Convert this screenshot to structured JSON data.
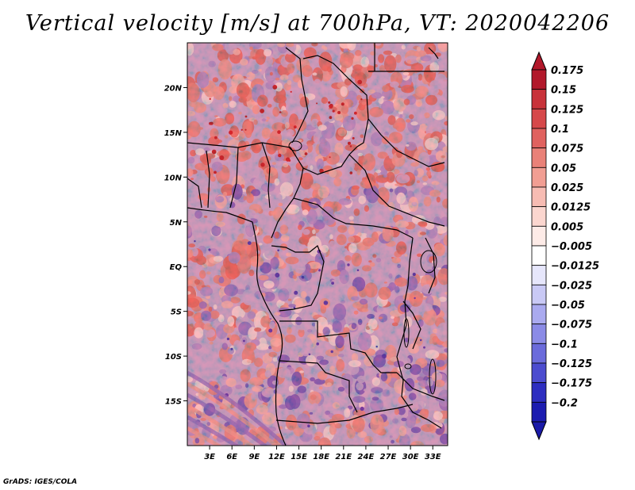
{
  "title": "Vertical velocity [m/s] at 700hPa, VT: 2020042206",
  "credit": "GrADS: IGES/COLA",
  "map": {
    "variable": "Vertical velocity",
    "units": "m/s",
    "level": "700hPa",
    "valid_time": "2020042206",
    "lat_range": [
      -20,
      25
    ],
    "lon_range": [
      0,
      35
    ],
    "lat_ticks": [
      {
        "value": 20,
        "label": "20N"
      },
      {
        "value": 15,
        "label": "15N"
      },
      {
        "value": 10,
        "label": "10N"
      },
      {
        "value": 5,
        "label": "5N"
      },
      {
        "value": 0,
        "label": "EQ"
      },
      {
        "value": -5,
        "label": "5S"
      },
      {
        "value": -10,
        "label": "10S"
      },
      {
        "value": -15,
        "label": "15S"
      }
    ],
    "lon_ticks": [
      {
        "value": 3,
        "label": "3E"
      },
      {
        "value": 6,
        "label": "6E"
      },
      {
        "value": 9,
        "label": "9E"
      },
      {
        "value": 12,
        "label": "12E"
      },
      {
        "value": 15,
        "label": "15E"
      },
      {
        "value": 18,
        "label": "18E"
      },
      {
        "value": 21,
        "label": "21E"
      },
      {
        "value": 24,
        "label": "24E"
      },
      {
        "value": 27,
        "label": "27E"
      },
      {
        "value": 30,
        "label": "30E"
      },
      {
        "value": 33,
        "label": "33E"
      }
    ]
  },
  "colorbar": {
    "levels": [
      {
        "label": "0.175",
        "color": "#b2182b"
      },
      {
        "label": "0.15",
        "color": "#c8323a"
      },
      {
        "label": "0.125",
        "color": "#d6484a"
      },
      {
        "label": "0.1",
        "color": "#e0625f"
      },
      {
        "label": "0.075",
        "color": "#e98178"
      },
      {
        "label": "0.05",
        "color": "#f19e93"
      },
      {
        "label": "0.025",
        "color": "#f7bcb3"
      },
      {
        "label": "0.0125",
        "color": "#fbd6cf"
      },
      {
        "label": "0.005",
        "color": "#fdebe7"
      },
      {
        "label": "−0.005",
        "color": "#ffffff"
      },
      {
        "label": "−0.0125",
        "color": "#e6e6fb"
      },
      {
        "label": "−0.025",
        "color": "#c9c9f5"
      },
      {
        "label": "−0.05",
        "color": "#aaaaef"
      },
      {
        "label": "−0.075",
        "color": "#8b8be6"
      },
      {
        "label": "−0.1",
        "color": "#6b6bdb"
      },
      {
        "label": "−0.125",
        "color": "#4c4ccf"
      },
      {
        "label": "−0.175",
        "color": "#2e2ec0"
      },
      {
        "label": "−0.2",
        "color": "#1c1cb0"
      }
    ],
    "top_arrow_color": "#b2182b",
    "bottom_arrow_color": "#1a1aa8"
  }
}
